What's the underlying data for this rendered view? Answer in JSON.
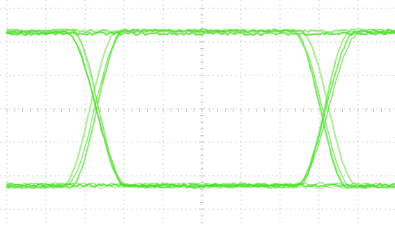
{
  "chart_data": {
    "type": "eye-diagram",
    "title": "",
    "xlabel": "",
    "ylabel": "",
    "grid": true,
    "grid_divisions": {
      "x": 10,
      "y": 8
    },
    "x_range_ui": [
      0,
      2.2
    ],
    "y_range": [
      -1,
      1
    ],
    "levels": {
      "high": 0.95,
      "low": -0.95
    },
    "crossings_ui": [
      0.5,
      1.8
    ],
    "crossing_level": 0.0,
    "traces": 14,
    "trace_color": "#44dd22",
    "trace_color_light": "#9be87e",
    "background": "#ffffff",
    "grid_color": "#b8b8b8"
  }
}
